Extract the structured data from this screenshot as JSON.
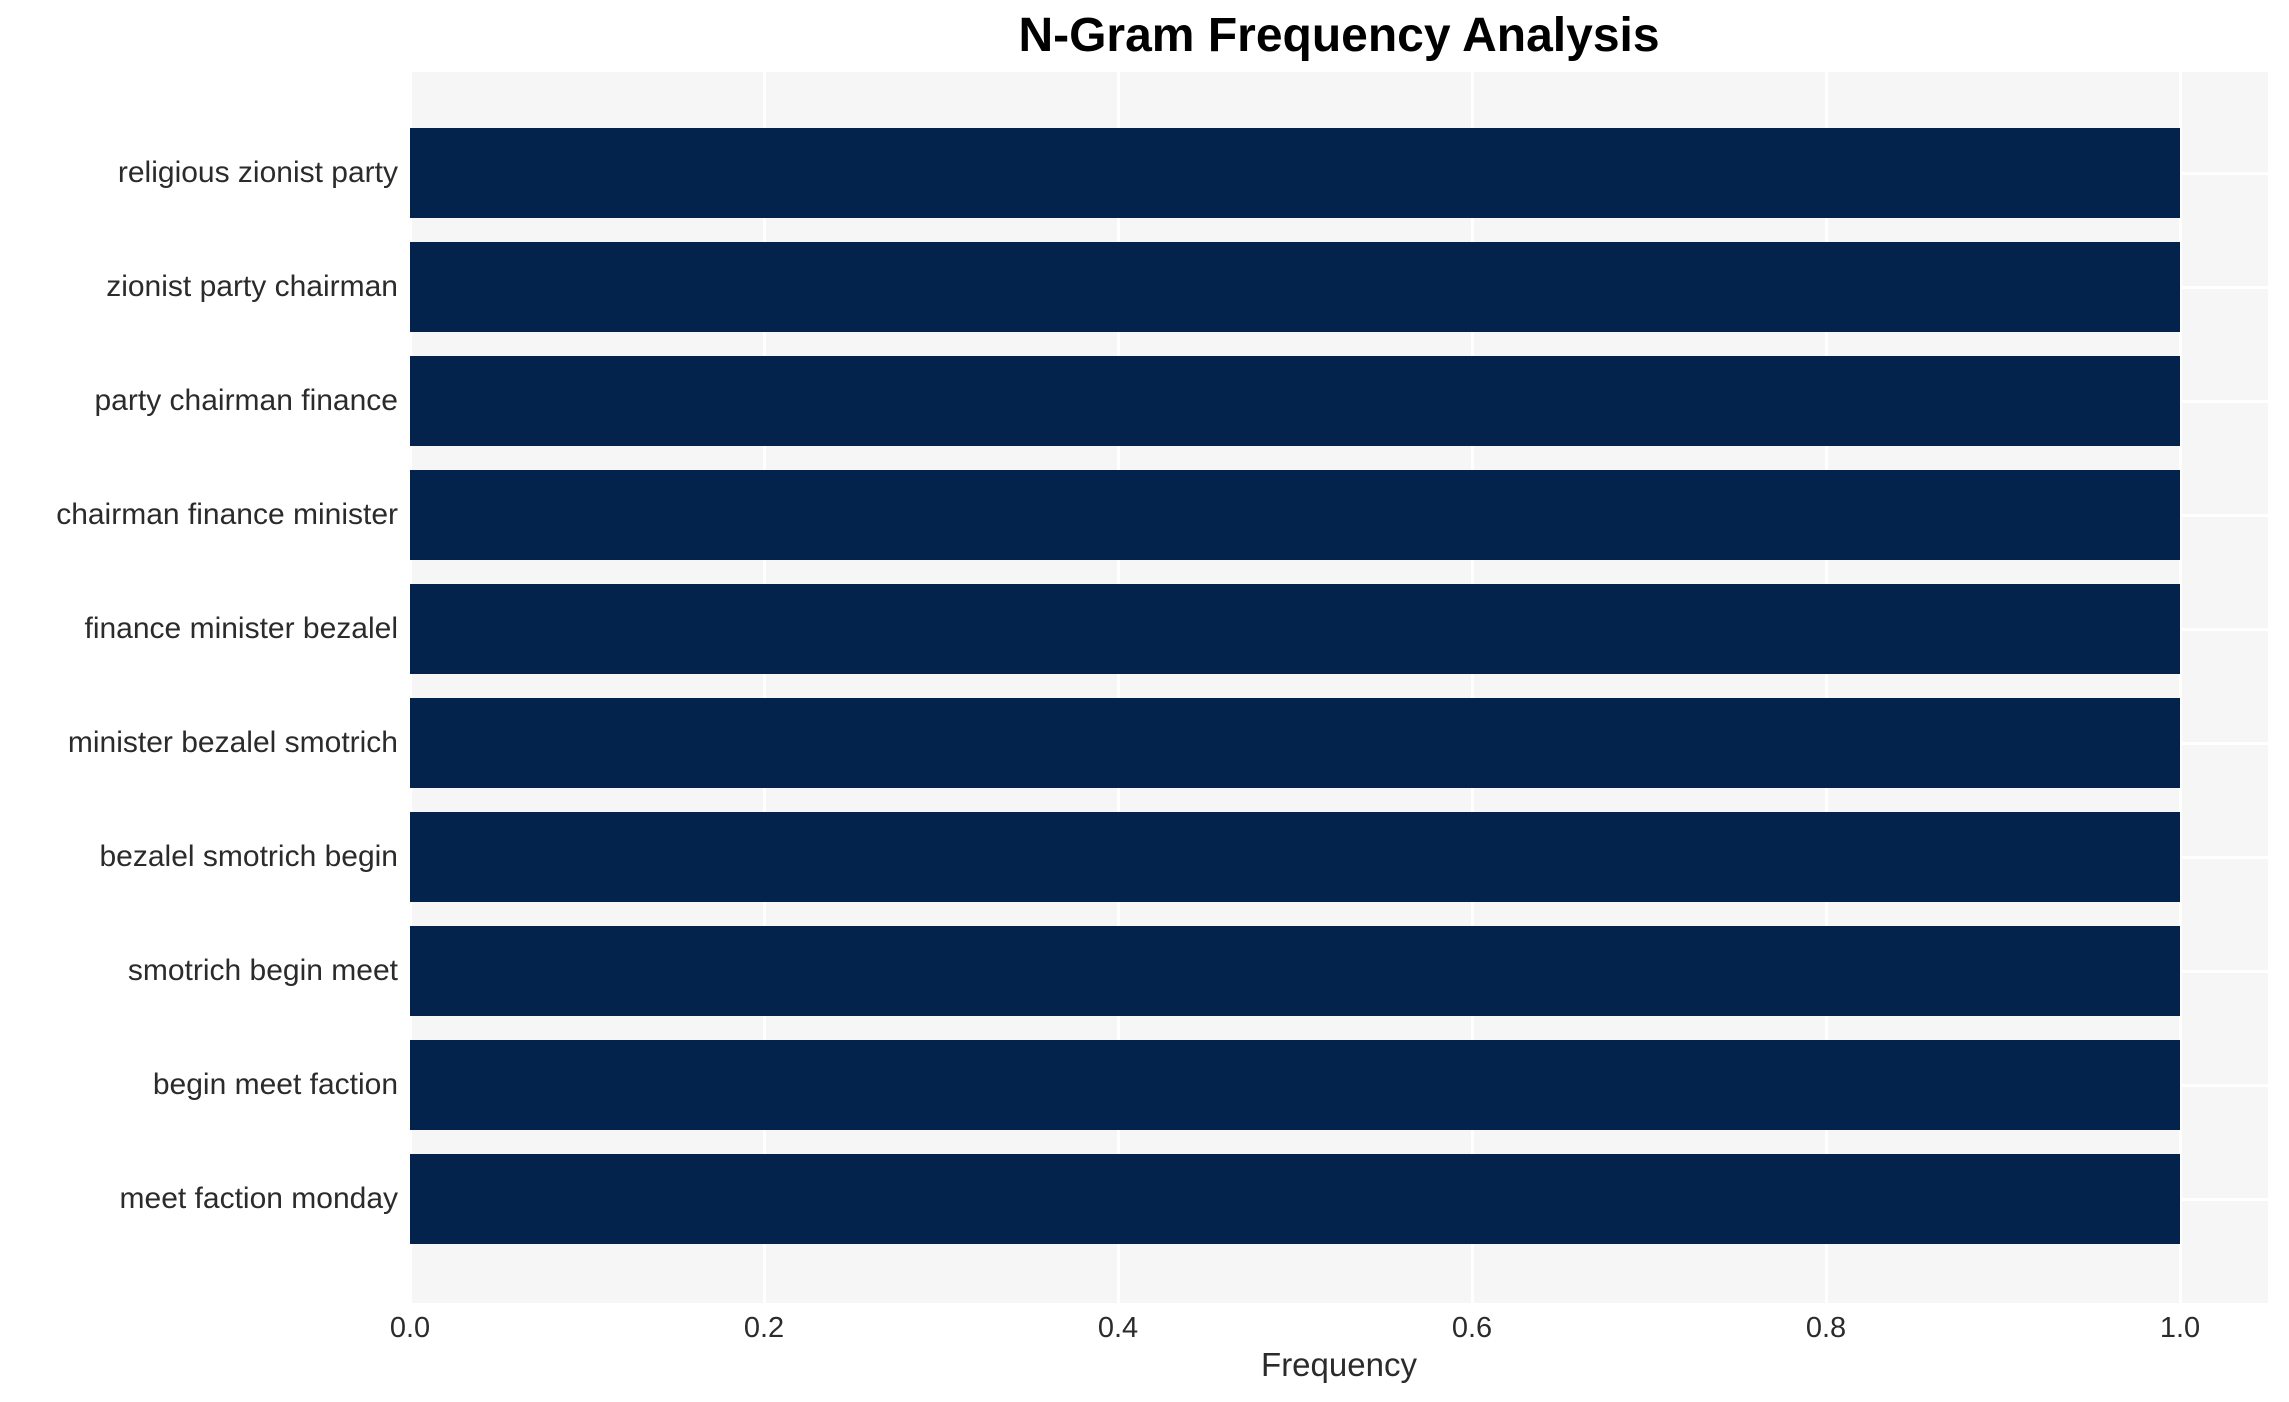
{
  "chart_data": {
    "type": "bar",
    "orientation": "horizontal",
    "title": "N-Gram Frequency Analysis",
    "xlabel": "Frequency",
    "ylabel": "",
    "categories": [
      "religious zionist party",
      "zionist party chairman",
      "party chairman finance",
      "chairman finance minister",
      "finance minister bezalel",
      "minister bezalel smotrich",
      "bezalel smotrich begin",
      "smotrich begin meet",
      "begin meet faction",
      "meet faction monday"
    ],
    "values": [
      1.0,
      1.0,
      1.0,
      1.0,
      1.0,
      1.0,
      1.0,
      1.0,
      1.0,
      1.0
    ],
    "x_ticks": [
      0.0,
      0.2,
      0.4,
      0.6,
      0.8,
      1.0
    ],
    "x_tick_labels": [
      "0.0",
      "0.2",
      "0.4",
      "0.6",
      "0.8",
      "1.0"
    ],
    "xlim": [
      0,
      1.05
    ],
    "grid": "white-on-gray, both axes, under bars",
    "legend_position": "none",
    "colors": {
      "bar": "#03234d",
      "plot_background": "#f6f6f7",
      "figure_background": "#ffffff",
      "gridline": "#ffffff",
      "title_text": "#000000",
      "axis_text": "#2b2b2b"
    }
  }
}
